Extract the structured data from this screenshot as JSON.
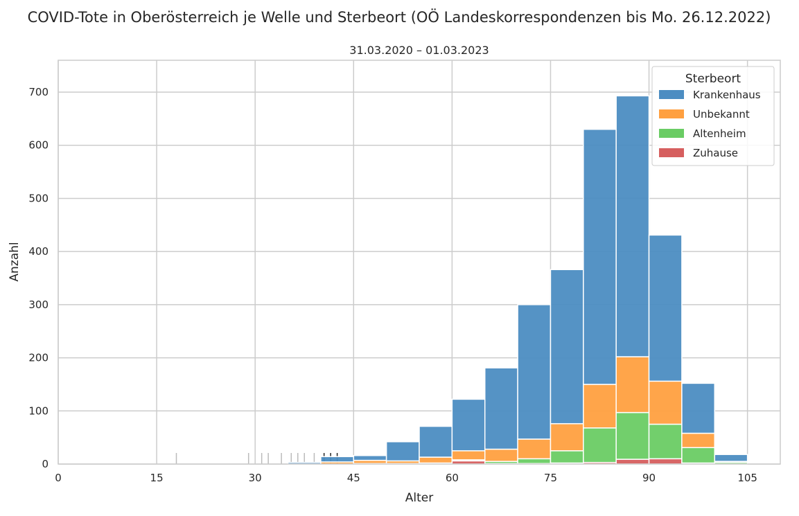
{
  "chart_data": {
    "type": "bar",
    "title": "COVID-Tote in Oberösterreich je Welle und Sterbeort (OÖ Landeskorrespondenzen bis Mo. 26.12.2022)",
    "subtitle": "31.03.2020 – 01.03.2023",
    "xlabel": "Alter",
    "ylabel": "Anzahl",
    "xlim": [
      0,
      110
    ],
    "ylim": [
      0,
      760
    ],
    "xticks": [
      0,
      15,
      30,
      45,
      60,
      75,
      90,
      105
    ],
    "yticks": [
      0,
      100,
      200,
      300,
      400,
      500,
      600,
      700
    ],
    "grid": true,
    "stacked": true,
    "legend": {
      "title": "Sterbeort",
      "placement": "top-right"
    },
    "bins": [
      [
        35,
        40
      ],
      [
        40,
        45
      ],
      [
        45,
        50
      ],
      [
        50,
        55
      ],
      [
        55,
        60
      ],
      [
        60,
        65
      ],
      [
        65,
        70
      ],
      [
        70,
        75
      ],
      [
        75,
        80
      ],
      [
        80,
        85
      ],
      [
        85,
        90
      ],
      [
        90,
        95
      ],
      [
        95,
        100
      ],
      [
        100,
        105
      ]
    ],
    "series": [
      {
        "name": "Zuhause",
        "color": "#d65f5f",
        "values": [
          0,
          0,
          0,
          0,
          1,
          6,
          1,
          1,
          2,
          3,
          9,
          10,
          2,
          0
        ]
      },
      {
        "name": "Altenheim",
        "color": "#6acc64",
        "values": [
          0,
          0,
          1,
          1,
          1,
          2,
          4,
          9,
          23,
          65,
          88,
          65,
          29,
          3
        ]
      },
      {
        "name": "Unbekannt",
        "color": "#ffa040",
        "values": [
          0,
          4,
          6,
          5,
          11,
          17,
          23,
          37,
          51,
          82,
          105,
          81,
          27,
          2
        ]
      },
      {
        "name": "Krankenhaus",
        "color": "#4c8dc2",
        "values": [
          3,
          10,
          9,
          36,
          58,
          97,
          153,
          253,
          290,
          480,
          491,
          275,
          94,
          13
        ]
      }
    ],
    "rug": {
      "grey": [
        18,
        29,
        31,
        32,
        34,
        35.5,
        36.5,
        37.5,
        39
      ],
      "black": [
        40.5,
        41.5,
        42.5
      ]
    }
  }
}
